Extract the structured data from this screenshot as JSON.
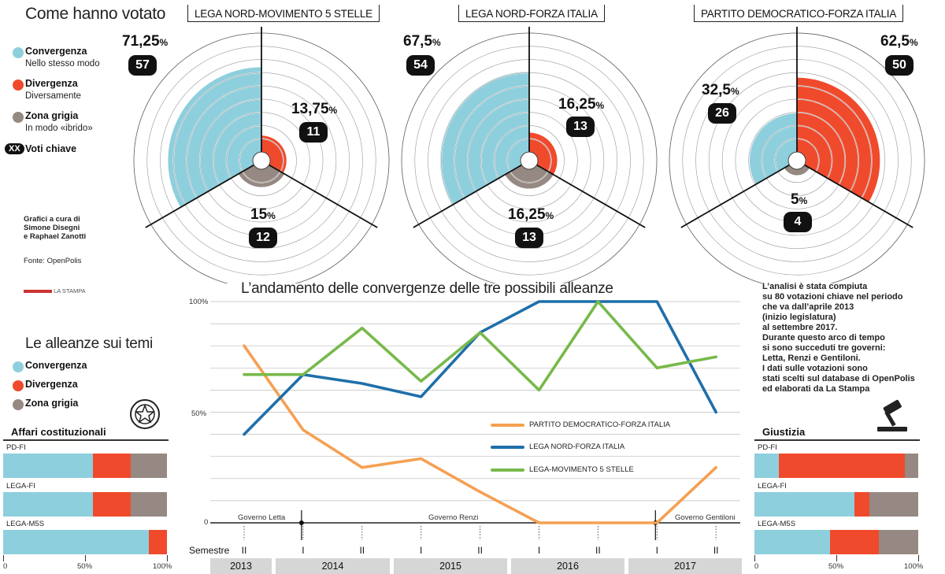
{
  "header": {
    "title": "Come hanno votato"
  },
  "legend": {
    "items": [
      {
        "name": "Convergenza",
        "desc": "Nello stesso modo",
        "color": "#8ecfdd"
      },
      {
        "name": "Divergenza",
        "desc": "Diversamente",
        "color": "#f04a2c"
      },
      {
        "name": "Zona grigia",
        "desc": "In modo «ibrido»",
        "color": "#968882"
      }
    ],
    "key_badge": "XX",
    "key_label": "Voti chiave"
  },
  "credits": {
    "line1": "Grafici a cura di",
    "line2": "Simone Disegni",
    "line3": "e Raphael Zanotti",
    "source": "Fonte: OpenPolis",
    "brand": "LA STAMPA"
  },
  "radars": [
    {
      "title": "LEGA NORD-MOVIMENTO 5 STELLE",
      "convergenza": {
        "pct": "71,25",
        "count": "57",
        "value": 71.25
      },
      "divergenza": {
        "pct": "13,75",
        "count": "11",
        "value": 13.75
      },
      "grigia": {
        "pct": "15",
        "count": "12",
        "value": 15
      }
    },
    {
      "title": "LEGA NORD-FORZA ITALIA",
      "convergenza": {
        "pct": "67,5",
        "count": "54",
        "value": 67.5
      },
      "divergenza": {
        "pct": "16,25",
        "count": "13",
        "value": 16.25
      },
      "grigia": {
        "pct": "16,25",
        "count": "13",
        "value": 16.25
      }
    },
    {
      "title": "PARTITO DEMOCRATICO-FORZA ITALIA",
      "convergenza": {
        "pct": "32,5",
        "count": "26",
        "value": 32.5
      },
      "divergenza": {
        "pct": "62,5",
        "count": "50",
        "value": 62.5
      },
      "grigia": {
        "pct": "5",
        "count": "4",
        "value": 5
      }
    }
  ],
  "pct_symbol": "%",
  "line_chart_title": "L’andamento delle convergenze delle tre possibili alleanze",
  "chart_data": {
    "type": "line",
    "x": [
      "2013-II",
      "2014-I",
      "2014-II",
      "2015-I",
      "2015-II",
      "2016-I",
      "2016-II",
      "2017-I",
      "2017-II"
    ],
    "series": [
      {
        "name": "PARTITO DEMOCRATICO-FORZA ITALIA",
        "color": "#f5a052",
        "values": [
          80,
          42,
          25,
          29,
          14,
          0,
          0,
          0,
          25
        ]
      },
      {
        "name": "LEGA NORD-FORZA ITALIA",
        "color": "#1f6faa",
        "values": [
          40,
          67,
          63,
          57,
          86,
          100,
          100,
          100,
          50
        ]
      },
      {
        "name": "LEGA-MOVIMENTO 5 STELLE",
        "color": "#77b94a",
        "values": [
          67,
          67,
          88,
          64,
          86,
          60,
          100,
          70,
          75
        ]
      }
    ],
    "y_ticks": [
      "100%",
      "50%",
      "0"
    ],
    "ylim": [
      0,
      100
    ],
    "semester_label": "Semestre",
    "semesters": [
      "II",
      "I",
      "II",
      "I",
      "II",
      "I",
      "II",
      "I",
      "II"
    ],
    "years": [
      "2013",
      "2014",
      "2015",
      "2016",
      "2017"
    ],
    "governments": [
      "Governo Letta",
      "Governo Renzi",
      "Governo Gentiloni"
    ]
  },
  "analysis_note": [
    "L’analisi è stata compiuta",
    "su 80 votazioni chiave nel periodo",
    "che va dall’aprile 2013",
    "(inizio legislatura)",
    "al settembre 2017.",
    "Durante questo arco di tempo",
    "si sono succeduti tre governi:",
    "Letta, Renzi e Gentiloni.",
    "I dati sulle votazioni sono",
    "stati scelti sul database di OpenPolis",
    "ed elaborati da La Stampa"
  ],
  "themes": {
    "title": "Le alleanze sui temi",
    "legend": [
      "Convergenza",
      "Divergenza",
      "Zona grigia"
    ],
    "scale": [
      "0",
      "50%",
      "100%"
    ],
    "panels": [
      {
        "title": "Affari costituzionali",
        "bars": [
          {
            "label": "PD-FI",
            "convergenza": 55,
            "divergenza": 23,
            "grigia": 22
          },
          {
            "label": "LEGA-FI",
            "convergenza": 55,
            "divergenza": 23,
            "grigia": 22
          },
          {
            "label": "LEGA-M5S",
            "convergenza": 89,
            "divergenza": 11,
            "grigia": 0
          }
        ]
      },
      {
        "title": "Giustizia",
        "bars": [
          {
            "label": "PD-FI",
            "convergenza": 15,
            "divergenza": 77,
            "grigia": 8
          },
          {
            "label": "LEGA-FI",
            "convergenza": 61,
            "divergenza": 9,
            "grigia": 30
          },
          {
            "label": "LEGA-M5S",
            "convergenza": 46,
            "divergenza": 30,
            "grigia": 24
          }
        ]
      }
    ]
  }
}
